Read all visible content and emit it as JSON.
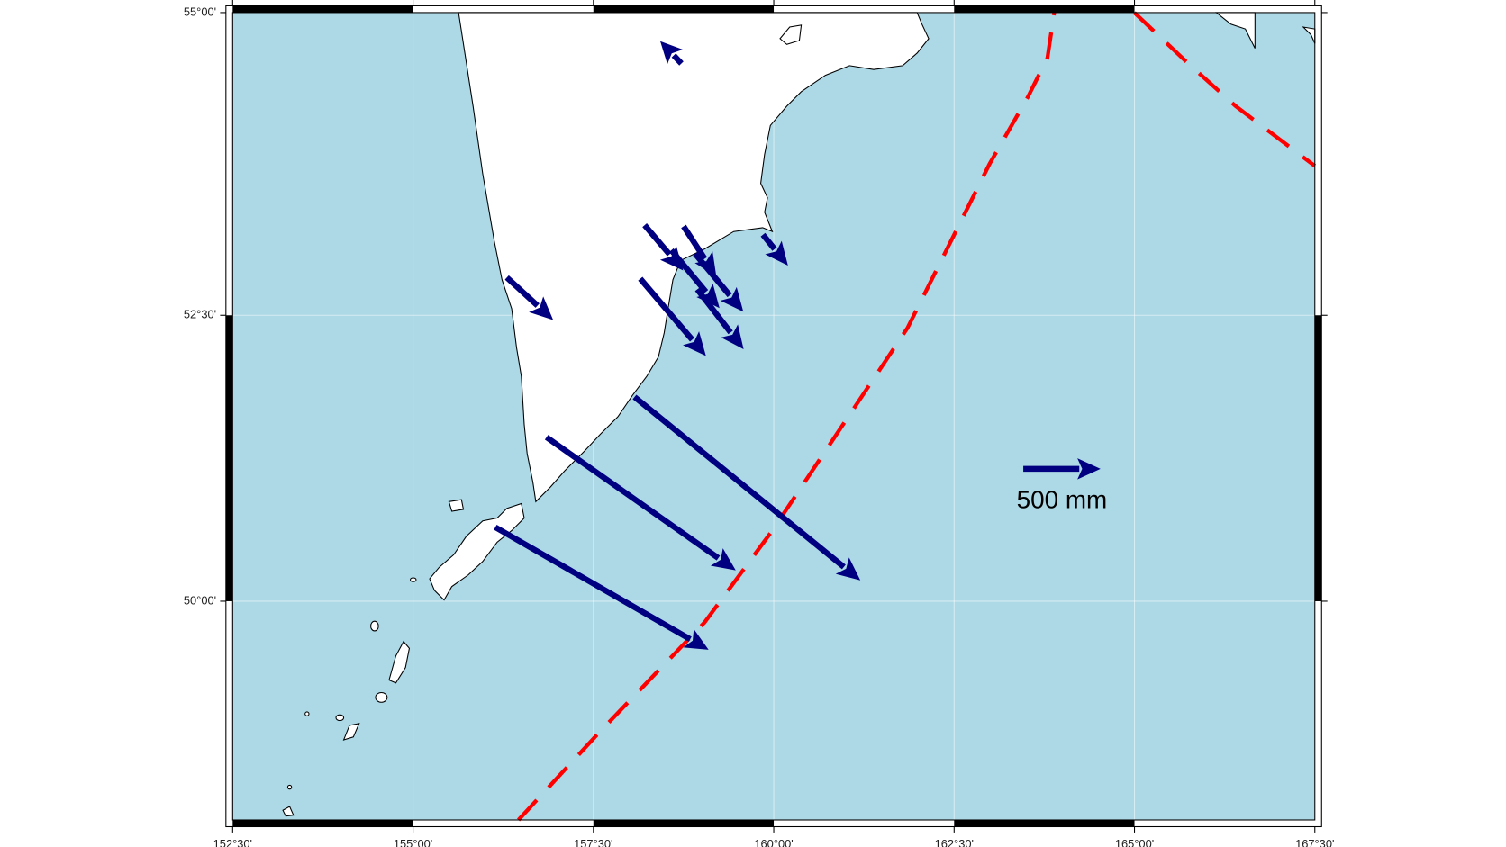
{
  "map": {
    "lon_ticks": [
      {
        "value": 152.5,
        "label": "152°30'"
      },
      {
        "value": 155,
        "label": "155°00'"
      },
      {
        "value": 157.5,
        "label": "157°30'"
      },
      {
        "value": 160,
        "label": "160°00'"
      },
      {
        "value": 162.5,
        "label": "162°30'"
      },
      {
        "value": 165,
        "label": "165°00'"
      },
      {
        "value": 167.5,
        "label": "167°30'"
      }
    ],
    "lat_ticks": [
      {
        "value": 50,
        "label": "50°00'"
      },
      {
        "value": 52.5,
        "label": "52°30'"
      },
      {
        "value": 55,
        "label": "55°00'"
      }
    ],
    "vectors": [
      {
        "lon": 156.3,
        "lat": 52.82,
        "east": 300,
        "north": -275
      },
      {
        "lon": 158.21,
        "lat": 53.26,
        "east": 250,
        "north": -294
      },
      {
        "lon": 158.75,
        "lat": 53.25,
        "east": 212,
        "north": -325
      },
      {
        "lon": 158.58,
        "lat": 53.05,
        "east": 312,
        "north": -375
      },
      {
        "lon": 158.91,
        "lat": 53.02,
        "east": 312,
        "north": -375
      },
      {
        "lon": 158.15,
        "lat": 52.81,
        "east": 425,
        "north": -500
      },
      {
        "lon": 158.94,
        "lat": 52.72,
        "east": 300,
        "north": -388
      },
      {
        "lon": 159.85,
        "lat": 53.18,
        "east": 162,
        "north": -200
      },
      {
        "lon": 158.72,
        "lat": 54.59,
        "east": -137,
        "north": 144
      },
      {
        "lon": 158.07,
        "lat": 51.8,
        "east": 1462,
        "north": -1188
      },
      {
        "lon": 156.85,
        "lat": 51.45,
        "east": 1225,
        "north": -862
      },
      {
        "lon": 156.14,
        "lat": 50.66,
        "east": 1381,
        "north": -794
      }
    ],
    "scale": {
      "value": 500,
      "label": "500 mm"
    }
  }
}
